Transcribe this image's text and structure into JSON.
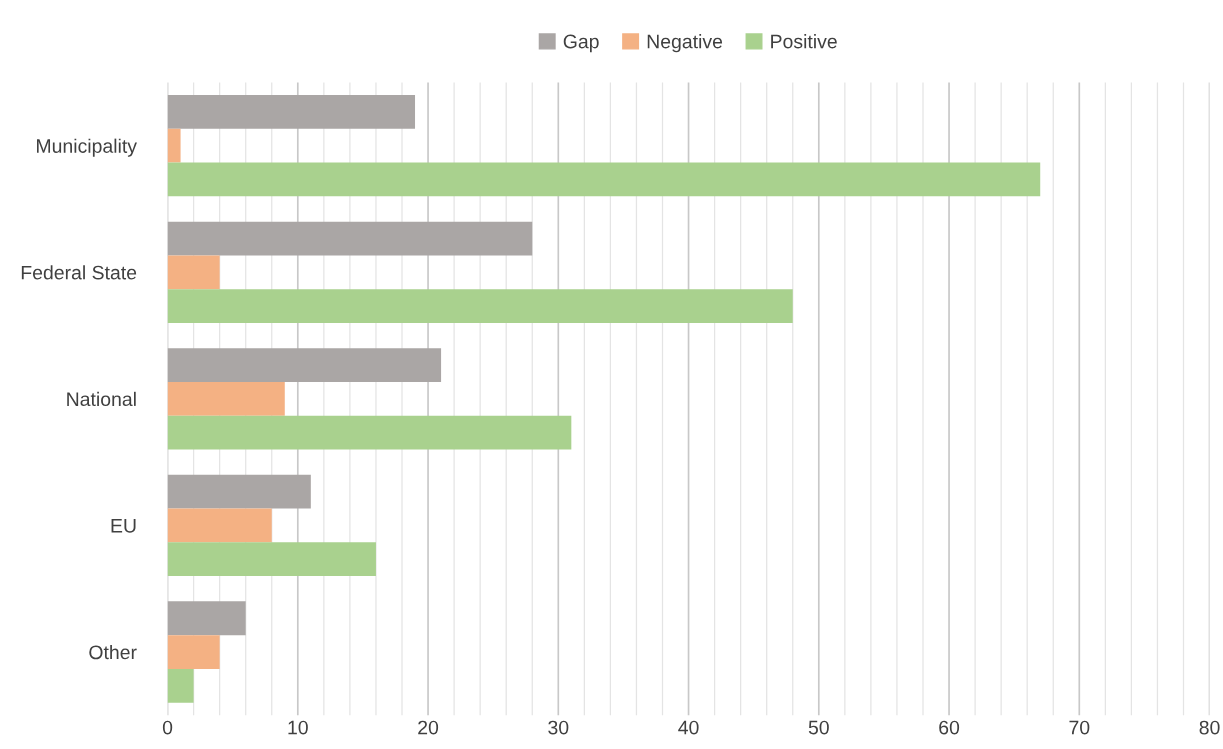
{
  "chart_data": {
    "type": "bar",
    "orientation": "horizontal",
    "categories": [
      "Municipality",
      "Federal State",
      "National",
      "EU",
      "Other"
    ],
    "series": [
      {
        "name": "Gap",
        "color": "#aaa6a5",
        "values": [
          19,
          28,
          21,
          11,
          6
        ]
      },
      {
        "name": "Negative",
        "color": "#f4b183",
        "values": [
          1,
          4,
          9,
          8,
          4
        ]
      },
      {
        "name": "Positive",
        "color": "#a9d18e",
        "values": [
          67,
          48,
          31,
          16,
          2
        ]
      }
    ],
    "xlim": [
      0,
      80
    ],
    "xticks": [
      0,
      {
        "value": 2,
        "label": null
      },
      {
        "value": 4,
        "label": null
      },
      {
        "value": 6,
        "label": null
      },
      {
        "value": 8,
        "label": null
      },
      10,
      {
        "value": 12,
        "label": null
      },
      {
        "value": 14,
        "label": null
      },
      {
        "value": 16,
        "label": null
      },
      {
        "value": 18,
        "label": null
      },
      20,
      {
        "value": 22,
        "label": null
      },
      {
        "value": 24,
        "label": null
      },
      {
        "value": 26,
        "label": null
      },
      {
        "value": 28,
        "label": null
      },
      30,
      {
        "value": 32,
        "label": null
      },
      {
        "value": 34,
        "label": null
      },
      {
        "value": 36,
        "label": null
      },
      {
        "value": 38,
        "label": null
      },
      40,
      {
        "value": 42,
        "label": null
      },
      {
        "value": 44,
        "label": null
      },
      {
        "value": 46,
        "label": null
      },
      {
        "value": 48,
        "label": null
      },
      50,
      {
        "value": 52,
        "label": null
      },
      {
        "value": 54,
        "label": null
      },
      {
        "value": 56,
        "label": null
      },
      {
        "value": 58,
        "label": null
      },
      60,
      {
        "value": 62,
        "label": null
      },
      {
        "value": 64,
        "label": null
      },
      {
        "value": 66,
        "label": null
      },
      {
        "value": 68,
        "label": null
      },
      70,
      {
        "value": 72,
        "label": null
      },
      {
        "value": 74,
        "label": null
      },
      {
        "value": 76,
        "label": null
      },
      {
        "value": 78,
        "label": null
      },
      80
    ],
    "grid": "x",
    "legend": "top"
  }
}
